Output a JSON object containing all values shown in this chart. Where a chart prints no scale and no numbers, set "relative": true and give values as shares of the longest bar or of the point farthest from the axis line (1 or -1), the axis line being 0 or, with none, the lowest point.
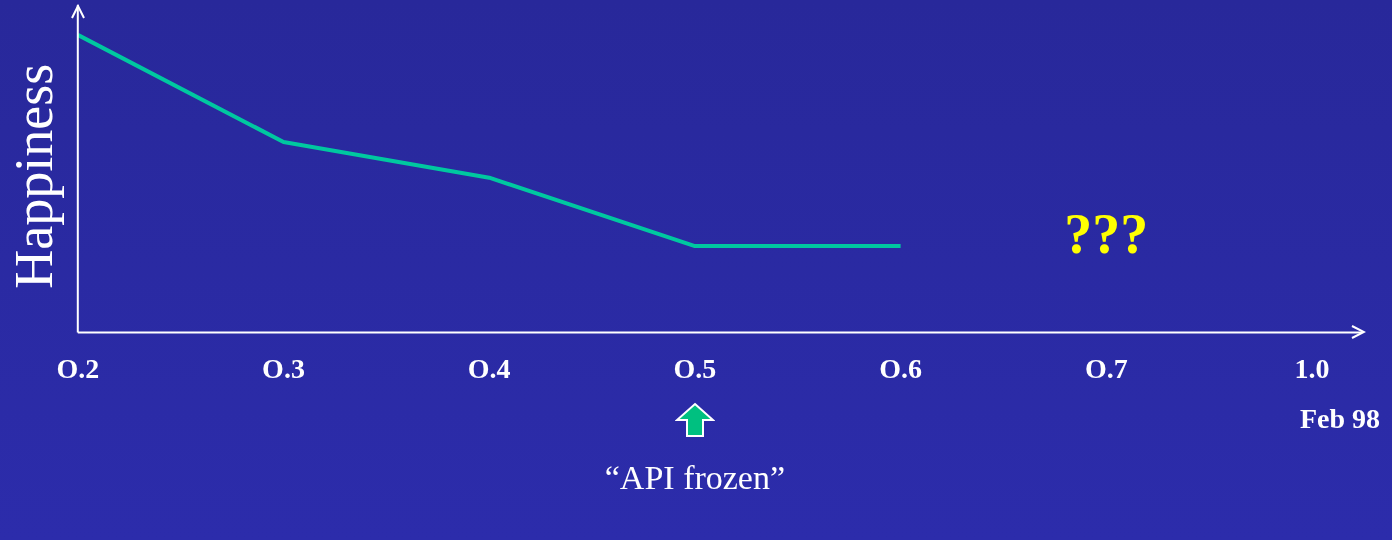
{
  "chart_data": {
    "type": "line",
    "relative": true,
    "ylabel": "Happiness",
    "tick_labels": "x",
    "grid": false,
    "legend": false,
    "marker": "none",
    "line_style": "solid",
    "categories": [
      "O.2",
      "O.3",
      "O.4",
      "O.5",
      "O.6",
      "O.7",
      "1.0"
    ],
    "series": [
      {
        "color": "#00c8a0",
        "values": [
          1,
          0.64,
          0.52,
          0.29,
          0.29,
          null,
          null
        ]
      }
    ],
    "annotations": [
      "???",
      "Feb 98",
      "“API frozen”"
    ]
  }
}
